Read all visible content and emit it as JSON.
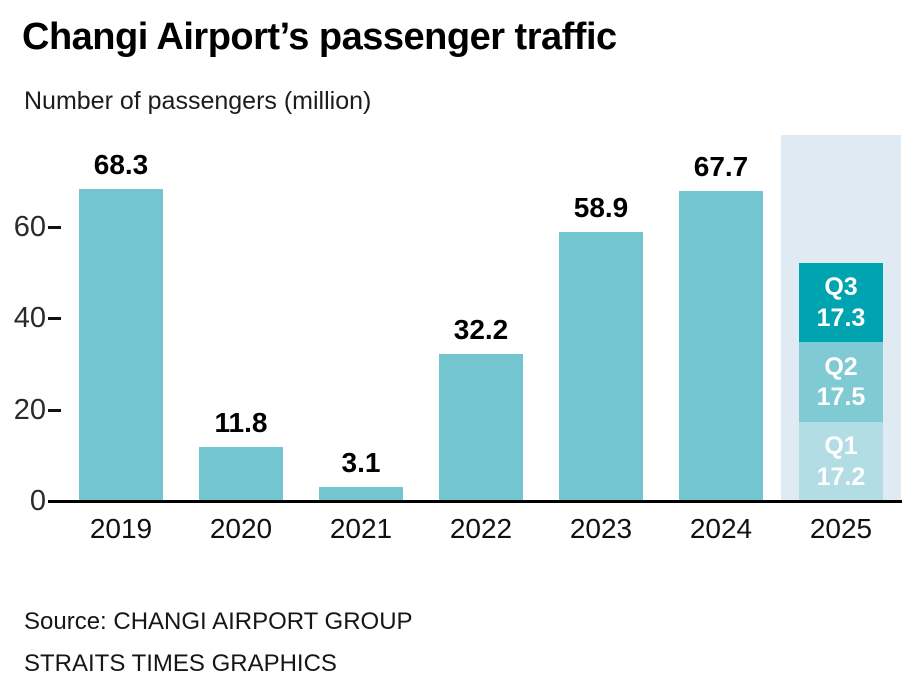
{
  "title": "Changi Airport’s passenger traffic",
  "subtitle": "Number of passengers (million)",
  "source_line1": "Source: CHANGI AIRPORT GROUP",
  "source_line2": "STRAITS TIMES GRAPHICS",
  "colors": {
    "bar": "#73c5cf",
    "q1": "#b2dde4",
    "q2": "#7fcad3",
    "q3": "#00a3b0",
    "highlight_band": "#dfeaf2",
    "text": "#111111",
    "axis": "#000000"
  },
  "chart_data": {
    "type": "bar",
    "title": "Changi Airport’s passenger traffic",
    "ylabel": "Number of passengers (million)",
    "xlabel": "",
    "categories": [
      "2019",
      "2020",
      "2021",
      "2022",
      "2023",
      "2024",
      "2025"
    ],
    "yticks": [
      0,
      20,
      40,
      60
    ],
    "ylim": [
      0,
      80
    ],
    "grid": false,
    "legend": "none",
    "bars": [
      {
        "category": "2019",
        "value": 68.3
      },
      {
        "category": "2020",
        "value": 11.8
      },
      {
        "category": "2021",
        "value": 3.1
      },
      {
        "category": "2022",
        "value": 32.2
      },
      {
        "category": "2023",
        "value": 58.9
      },
      {
        "category": "2024",
        "value": 67.7
      },
      {
        "category": "2025",
        "highlight": true,
        "stack": [
          {
            "name": "Q1",
            "value": 17.2
          },
          {
            "name": "Q2",
            "value": 17.5
          },
          {
            "name": "Q3",
            "value": 17.3
          }
        ]
      }
    ]
  }
}
